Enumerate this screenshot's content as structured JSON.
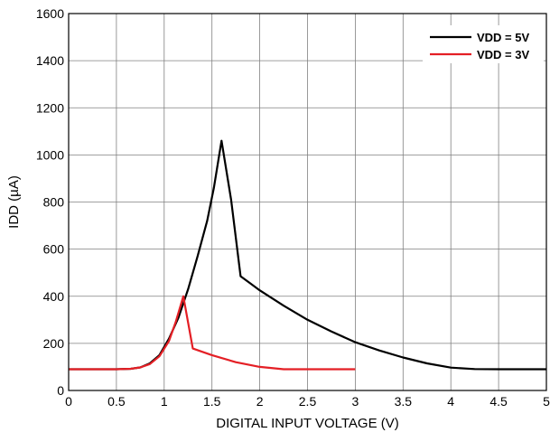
{
  "chart_data": {
    "type": "line",
    "xlabel": "DIGITAL INPUT VOLTAGE (V)",
    "ylabel": "IDD (µA)",
    "xlim": [
      0,
      5
    ],
    "ylim": [
      0,
      1600
    ],
    "xticks": [
      0,
      0.5,
      1,
      1.5,
      2,
      2.5,
      3,
      3.5,
      4,
      4.5,
      5
    ],
    "xtick_labels": [
      "0",
      "0.5",
      "1",
      "1.5",
      "2",
      "2.5",
      "3",
      "3.5",
      "4",
      "4.5",
      "5"
    ],
    "yticks": [
      0,
      200,
      400,
      600,
      800,
      1000,
      1200,
      1400,
      1600
    ],
    "ytick_labels": [
      "0",
      "200",
      "400",
      "600",
      "800",
      "1000",
      "1200",
      "1400",
      "1600"
    ],
    "grid": true,
    "legend_position": "top-right",
    "series": [
      {
        "name": "VDD = 5V",
        "color": "#000000",
        "points": [
          [
            0,
            90
          ],
          [
            0.5,
            90
          ],
          [
            0.65,
            92
          ],
          [
            0.75,
            98
          ],
          [
            0.85,
            115
          ],
          [
            0.95,
            150
          ],
          [
            1.05,
            220
          ],
          [
            1.15,
            310
          ],
          [
            1.25,
            430
          ],
          [
            1.35,
            570
          ],
          [
            1.45,
            720
          ],
          [
            1.52,
            860
          ],
          [
            1.6,
            1060
          ],
          [
            1.7,
            810
          ],
          [
            1.8,
            485
          ],
          [
            1.9,
            455
          ],
          [
            2.0,
            425
          ],
          [
            2.25,
            360
          ],
          [
            2.5,
            300
          ],
          [
            2.75,
            250
          ],
          [
            3.0,
            205
          ],
          [
            3.25,
            170
          ],
          [
            3.5,
            140
          ],
          [
            3.75,
            115
          ],
          [
            4.0,
            97
          ],
          [
            4.25,
            91
          ],
          [
            4.5,
            90
          ],
          [
            5.0,
            90
          ]
        ]
      },
      {
        "name": "VDD = 3V",
        "color": "#e41f25",
        "points": [
          [
            0,
            90
          ],
          [
            0.5,
            90
          ],
          [
            0.65,
            92
          ],
          [
            0.75,
            98
          ],
          [
            0.85,
            112
          ],
          [
            0.95,
            145
          ],
          [
            1.05,
            210
          ],
          [
            1.12,
            290
          ],
          [
            1.2,
            400
          ],
          [
            1.3,
            178
          ],
          [
            1.5,
            150
          ],
          [
            1.75,
            120
          ],
          [
            2.0,
            100
          ],
          [
            2.25,
            90
          ],
          [
            2.5,
            90
          ],
          [
            3.0,
            90
          ]
        ]
      }
    ]
  }
}
